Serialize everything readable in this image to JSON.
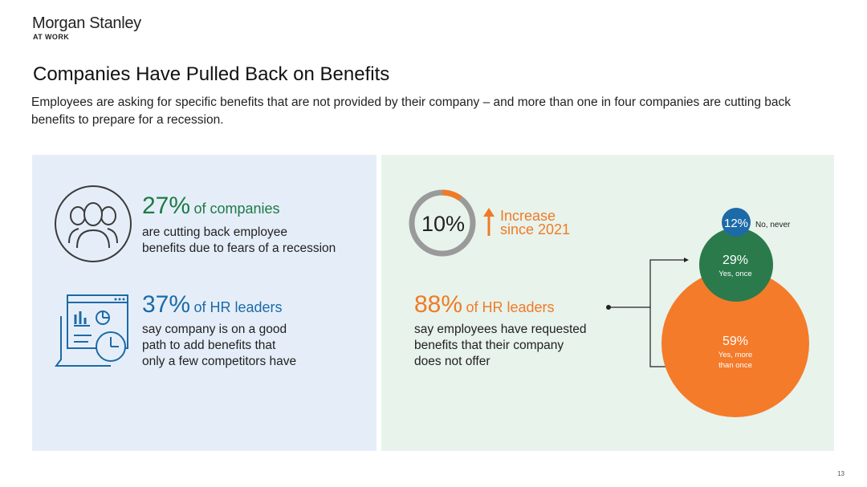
{
  "brand": {
    "name": "Morgan Stanley",
    "sub": "AT WORK"
  },
  "title": "Companies Have Pulled Back on Benefits",
  "subtitle": "Employees are asking for specific benefits that are not provided by their company – and more than one in four companies are cutting back benefits to prepare for a recession.",
  "left_panel": {
    "stat1": {
      "value": "27%",
      "label": "of companies",
      "desc": [
        "are cutting back employee",
        "benefits due to fears of a recession"
      ],
      "icon": "people-group-icon"
    },
    "stat2": {
      "value": "37%",
      "label": "of HR leaders",
      "desc": [
        "say company is on a good",
        "path to add benefits that",
        "only a few competitors have"
      ],
      "icon": "dashboard-clock-icon"
    }
  },
  "right_panel": {
    "ring": {
      "value": "10%",
      "percent": 10,
      "trend_line1": "Increase",
      "trend_line2": "since 2021",
      "trend_icon": "arrow-up-icon"
    },
    "stat": {
      "value": "88%",
      "label": "of HR leaders",
      "desc": [
        "say employees have requested",
        "benefits that their company",
        "does not offer"
      ]
    },
    "bubbles": [
      {
        "pct": "12%",
        "label": "No, never",
        "value": 12,
        "color": "#1d6aa8"
      },
      {
        "pct": "29%",
        "label": "Yes, once",
        "value": 29,
        "color": "#2a7a4c"
      },
      {
        "pct": "59%",
        "label_line1": "Yes, more",
        "label_line2": "than once",
        "value": 59,
        "color": "#f47b2a"
      }
    ]
  },
  "colors": {
    "green": "#1e7a46",
    "blue": "#1d6aa8",
    "orange": "#f07b26",
    "ring_gray": "#9a9a9a"
  },
  "page_number": "13"
}
